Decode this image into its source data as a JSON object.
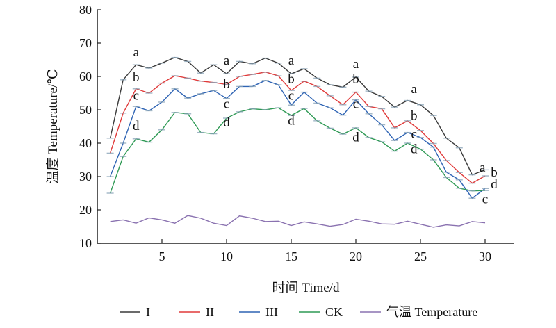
{
  "chart_data": {
    "type": "line",
    "title": "",
    "xlabel": "时间 Time/d",
    "ylabel": "温度 Temperature/℃",
    "xlim": [
      0,
      32
    ],
    "ylim": [
      10,
      80
    ],
    "xticks": [
      5,
      10,
      15,
      20,
      25,
      30
    ],
    "yticks": [
      10,
      20,
      30,
      40,
      50,
      60,
      70,
      80
    ],
    "grid": false,
    "legend_position": "bottom",
    "x": [
      1,
      2,
      3,
      4,
      5,
      6,
      7,
      8,
      9,
      10,
      11,
      12,
      13,
      14,
      15,
      16,
      17,
      18,
      19,
      20,
      21,
      22,
      23,
      24,
      25,
      26,
      27,
      28,
      29,
      30
    ],
    "series": [
      {
        "name": "I",
        "color": "#3a3a3a",
        "values": [
          41.5,
          59,
          63.5,
          62.5,
          64,
          65.7,
          64.5,
          61,
          63.5,
          60.8,
          64.5,
          63.8,
          65.5,
          64,
          60.8,
          62.3,
          59.5,
          57.5,
          56.8,
          59.8,
          55.6,
          54,
          50.8,
          52.8,
          51.5,
          48.3,
          41.5,
          38.6,
          30.5,
          32
        ]
      },
      {
        "name": "II",
        "color": "#e03a3a",
        "values": [
          37,
          49,
          56.3,
          55,
          58,
          60.2,
          59.5,
          58.6,
          58.2,
          57.6,
          60,
          60.6,
          61.3,
          60.2,
          55.8,
          58.6,
          57,
          54.2,
          51.5,
          55.3,
          51,
          50.3,
          44.6,
          46.7,
          43.8,
          39.9,
          34.8,
          31.2,
          28,
          30.2
        ]
      },
      {
        "name": "III",
        "color": "#2f64b4",
        "values": [
          30,
          40,
          51,
          49.7,
          52.3,
          56.3,
          53.5,
          54.8,
          55.8,
          53.4,
          57,
          57,
          58.8,
          57.5,
          51.4,
          55.3,
          52,
          50.6,
          48.4,
          53,
          48.8,
          45.5,
          40.8,
          43.2,
          41.7,
          38.8,
          31.3,
          29,
          23.5,
          26.4
        ]
      },
      {
        "name": "CK",
        "color": "#2f9a55",
        "values": [
          25,
          36,
          41.3,
          40.3,
          44,
          49.2,
          48.8,
          43.2,
          42.8,
          47.5,
          49.4,
          50.3,
          50,
          50.6,
          48.3,
          50.4,
          46.7,
          44.5,
          42.7,
          44.6,
          41.7,
          40.4,
          37.6,
          40,
          38.2,
          35,
          29.7,
          26.5,
          25.7,
          25.8
        ]
      },
      {
        "name": "气温 Temperature",
        "color": "#8a72b0",
        "values": [
          16.5,
          17,
          16,
          17.6,
          17,
          16,
          18.3,
          17.5,
          16,
          15.3,
          18.2,
          17.5,
          16.5,
          16.6,
          15.3,
          16.4,
          15.8,
          15.1,
          15.6,
          17.2,
          16.6,
          15.8,
          15.7,
          16.6,
          15.7,
          14.8,
          15.5,
          15.2,
          16.5,
          16.1
        ]
      }
    ],
    "annotations": [
      {
        "text": "a",
        "x": 3,
        "y": 66
      },
      {
        "text": "b",
        "x": 3,
        "y": 58.5
      },
      {
        "text": "c",
        "x": 3,
        "y": 53
      },
      {
        "text": "d",
        "x": 3,
        "y": 44
      },
      {
        "text": "a",
        "x": 10,
        "y": 63.5
      },
      {
        "text": "b",
        "x": 10,
        "y": 56.5
      },
      {
        "text": "c",
        "x": 10,
        "y": 50.5
      },
      {
        "text": "d",
        "x": 10,
        "y": 45
      },
      {
        "text": "a",
        "x": 15,
        "y": 63.5
      },
      {
        "text": "b",
        "x": 15,
        "y": 58
      },
      {
        "text": "c",
        "x": 15,
        "y": 53
      },
      {
        "text": "d",
        "x": 15,
        "y": 45.5
      },
      {
        "text": "a",
        "x": 20,
        "y": 62.5
      },
      {
        "text": "b",
        "x": 20,
        "y": 58
      },
      {
        "text": "c",
        "x": 20,
        "y": 50.5
      },
      {
        "text": "d",
        "x": 20,
        "y": 40.5
      },
      {
        "text": "a",
        "x": 24.5,
        "y": 55
      },
      {
        "text": "b",
        "x": 24.5,
        "y": 47
      },
      {
        "text": "c",
        "x": 24.5,
        "y": 41.5
      },
      {
        "text": "d",
        "x": 24.5,
        "y": 37
      },
      {
        "text": "a",
        "x": 29.8,
        "y": 31.5
      },
      {
        "text": "b",
        "x": 30.7,
        "y": 30
      },
      {
        "text": "d",
        "x": 30.7,
        "y": 26.5
      },
      {
        "text": "c",
        "x": 30,
        "y": 22
      }
    ]
  }
}
